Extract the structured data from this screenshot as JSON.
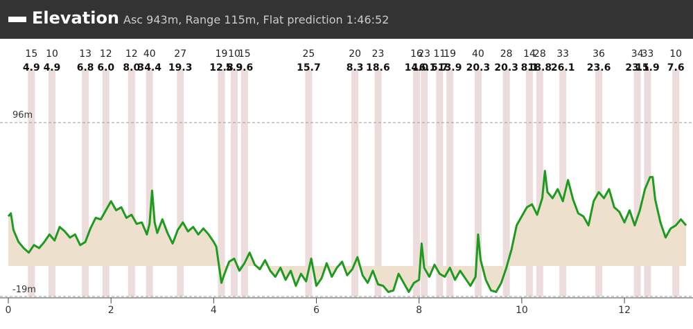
{
  "header": {
    "title": "Elevation",
    "subtitle": "Asc 943m, Range 115m, Flat prediction 1:46:52"
  },
  "chart_data": {
    "type": "area",
    "ymax_label": "96m",
    "ymin_label": "-19m",
    "ylim": [
      -19,
      96
    ],
    "xlim": [
      0,
      13.2
    ],
    "xticks": [
      0,
      2,
      4,
      6,
      8,
      10,
      12
    ],
    "grid": "dashed lines at min and max elevation",
    "fill_color": "#ede0cc",
    "line_color": "#1e9a1e",
    "band_color": "#eddcdc",
    "segments": [
      {
        "x": 0.45,
        "top": "15",
        "bottom": "4.9"
      },
      {
        "x": 0.85,
        "top": "10",
        "bottom": "4.9"
      },
      {
        "x": 1.5,
        "top": "13",
        "bottom": "6.8"
      },
      {
        "x": 1.9,
        "top": "12",
        "bottom": "6.0"
      },
      {
        "x": 2.4,
        "top": "12",
        "bottom": "8.0"
      },
      {
        "x": 2.75,
        "top": "40",
        "bottom": "34.4"
      },
      {
        "x": 3.35,
        "top": "27",
        "bottom": "19.3"
      },
      {
        "x": 4.15,
        "top": "19",
        "bottom": "12.8"
      },
      {
        "x": 4.4,
        "top": "10",
        "bottom": "5.9"
      },
      {
        "x": 4.6,
        "top": "15",
        "bottom": "9.6"
      },
      {
        "x": 5.85,
        "top": "25",
        "bottom": "15.7"
      },
      {
        "x": 6.75,
        "top": "20",
        "bottom": "8.3"
      },
      {
        "x": 7.2,
        "top": "23",
        "bottom": "18.6"
      },
      {
        "x": 7.95,
        "top": "16",
        "bottom": "14.0"
      },
      {
        "x": 8.1,
        "top": "23",
        "bottom": "16.1"
      },
      {
        "x": 8.4,
        "top": "11",
        "bottom": "5.7"
      },
      {
        "x": 8.6,
        "top": "19",
        "bottom": "13.9"
      },
      {
        "x": 9.15,
        "top": "40",
        "bottom": "20.3"
      },
      {
        "x": 9.7,
        "top": "28",
        "bottom": "20.3"
      },
      {
        "x": 10.15,
        "top": "14",
        "bottom": "8.1"
      },
      {
        "x": 10.35,
        "top": "28",
        "bottom": "18.8"
      },
      {
        "x": 10.8,
        "top": "33",
        "bottom": "26.1"
      },
      {
        "x": 11.5,
        "top": "36",
        "bottom": "23.6"
      },
      {
        "x": 12.25,
        "top": "34",
        "bottom": "23.1"
      },
      {
        "x": 12.45,
        "top": "33",
        "bottom": "15.9"
      },
      {
        "x": 13.0,
        "top": "10",
        "bottom": "7.6"
      }
    ],
    "profile": [
      [
        0.0,
        34
      ],
      [
        0.05,
        36
      ],
      [
        0.1,
        25
      ],
      [
        0.2,
        17
      ],
      [
        0.3,
        13
      ],
      [
        0.4,
        10
      ],
      [
        0.5,
        15
      ],
      [
        0.6,
        13
      ],
      [
        0.7,
        17
      ],
      [
        0.8,
        22
      ],
      [
        0.9,
        18
      ],
      [
        1.0,
        27
      ],
      [
        1.1,
        24
      ],
      [
        1.2,
        20
      ],
      [
        1.3,
        22
      ],
      [
        1.4,
        15
      ],
      [
        1.5,
        17
      ],
      [
        1.6,
        26
      ],
      [
        1.7,
        33
      ],
      [
        1.8,
        32
      ],
      [
        1.9,
        38
      ],
      [
        2.0,
        44
      ],
      [
        2.1,
        38
      ],
      [
        2.2,
        40
      ],
      [
        2.3,
        33
      ],
      [
        2.4,
        35
      ],
      [
        2.5,
        29
      ],
      [
        2.6,
        30
      ],
      [
        2.7,
        22
      ],
      [
        2.75,
        29
      ],
      [
        2.8,
        51
      ],
      [
        2.85,
        30
      ],
      [
        2.9,
        23
      ],
      [
        3.0,
        32
      ],
      [
        3.1,
        23
      ],
      [
        3.2,
        16
      ],
      [
        3.3,
        25
      ],
      [
        3.4,
        30
      ],
      [
        3.5,
        24
      ],
      [
        3.6,
        27
      ],
      [
        3.7,
        22
      ],
      [
        3.8,
        26
      ],
      [
        3.9,
        22
      ],
      [
        4.0,
        17
      ],
      [
        4.05,
        14
      ],
      [
        4.1,
        2
      ],
      [
        4.15,
        -10
      ],
      [
        4.2,
        -5
      ],
      [
        4.3,
        4
      ],
      [
        4.4,
        6
      ],
      [
        4.5,
        -2
      ],
      [
        4.6,
        3
      ],
      [
        4.7,
        10
      ],
      [
        4.8,
        2
      ],
      [
        4.9,
        -1
      ],
      [
        5.0,
        5
      ],
      [
        5.1,
        -2
      ],
      [
        5.2,
        -6
      ],
      [
        5.3,
        0
      ],
      [
        5.4,
        -8
      ],
      [
        5.5,
        -2
      ],
      [
        5.6,
        -12
      ],
      [
        5.7,
        -4
      ],
      [
        5.8,
        -9
      ],
      [
        5.9,
        6
      ],
      [
        6.0,
        -12
      ],
      [
        6.1,
        -7
      ],
      [
        6.2,
        3
      ],
      [
        6.3,
        -6
      ],
      [
        6.4,
        0
      ],
      [
        6.5,
        4
      ],
      [
        6.6,
        -5
      ],
      [
        6.7,
        -1
      ],
      [
        6.8,
        7
      ],
      [
        6.9,
        -5
      ],
      [
        7.0,
        -10
      ],
      [
        7.1,
        -2
      ],
      [
        7.2,
        -11
      ],
      [
        7.3,
        -12
      ],
      [
        7.4,
        -16
      ],
      [
        7.5,
        -15
      ],
      [
        7.6,
        -4
      ],
      [
        7.7,
        -10
      ],
      [
        7.8,
        -16
      ],
      [
        7.9,
        -10
      ],
      [
        8.0,
        -8
      ],
      [
        8.05,
        16
      ],
      [
        8.1,
        0
      ],
      [
        8.2,
        -6
      ],
      [
        8.3,
        2
      ],
      [
        8.4,
        -4
      ],
      [
        8.5,
        -6
      ],
      [
        8.6,
        0
      ],
      [
        8.7,
        -8
      ],
      [
        8.8,
        -2
      ],
      [
        8.9,
        -7
      ],
      [
        9.0,
        -12
      ],
      [
        9.1,
        -6
      ],
      [
        9.15,
        22
      ],
      [
        9.2,
        5
      ],
      [
        9.3,
        -8
      ],
      [
        9.4,
        -15
      ],
      [
        9.5,
        -16
      ],
      [
        9.6,
        -10
      ],
      [
        9.7,
        0
      ],
      [
        9.8,
        12
      ],
      [
        9.9,
        28
      ],
      [
        10.0,
        34
      ],
      [
        10.1,
        40
      ],
      [
        10.2,
        42
      ],
      [
        10.3,
        35
      ],
      [
        10.4,
        46
      ],
      [
        10.45,
        64
      ],
      [
        10.5,
        50
      ],
      [
        10.6,
        46
      ],
      [
        10.7,
        52
      ],
      [
        10.8,
        44
      ],
      [
        10.9,
        58
      ],
      [
        11.0,
        45
      ],
      [
        11.1,
        36
      ],
      [
        11.2,
        34
      ],
      [
        11.3,
        28
      ],
      [
        11.4,
        44
      ],
      [
        11.5,
        50
      ],
      [
        11.6,
        46
      ],
      [
        11.7,
        52
      ],
      [
        11.8,
        40
      ],
      [
        11.9,
        37
      ],
      [
        12.0,
        30
      ],
      [
        12.1,
        38
      ],
      [
        12.2,
        28
      ],
      [
        12.3,
        38
      ],
      [
        12.4,
        52
      ],
      [
        12.5,
        60
      ],
      [
        12.55,
        60
      ],
      [
        12.6,
        45
      ],
      [
        12.7,
        30
      ],
      [
        12.8,
        20
      ],
      [
        12.9,
        26
      ],
      [
        13.0,
        28
      ],
      [
        13.1,
        32
      ],
      [
        13.2,
        28
      ]
    ]
  }
}
